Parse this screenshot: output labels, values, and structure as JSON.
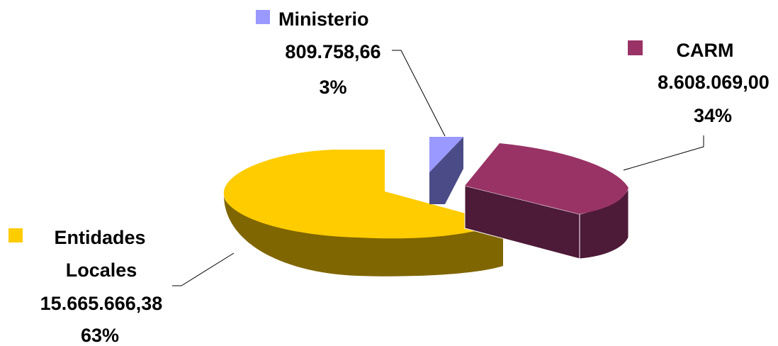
{
  "chart_data": {
    "type": "pie",
    "title": "",
    "slices": [
      {
        "name": "Ministerio",
        "value": "809.758,66",
        "percent": "3%",
        "color": "#9999ff",
        "side_color": "#4b4b87"
      },
      {
        "name": "CARM",
        "value": "8.608.069,00",
        "percent": "34%",
        "color": "#993366",
        "side_color": "#4d1a38"
      },
      {
        "name": "Entidades Locales",
        "name_lines": [
          "Entidades",
          "Locales"
        ],
        "value": "15.665.666,38",
        "percent": "63%",
        "color": "#ffcc00",
        "side_color": "#806600"
      }
    ]
  }
}
